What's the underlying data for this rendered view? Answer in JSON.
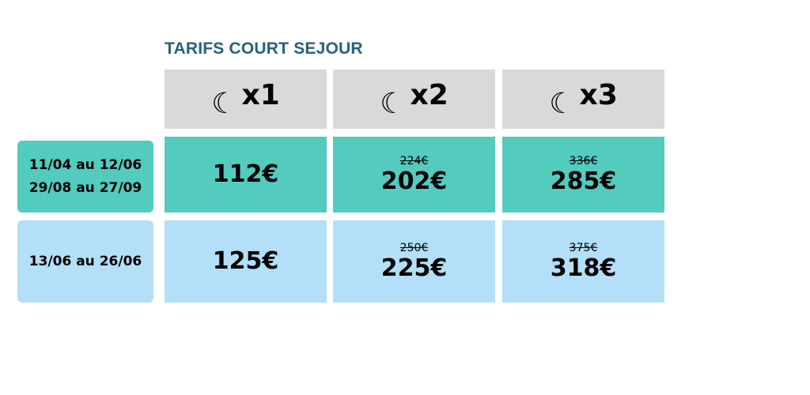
{
  "title": "TARIFS COURT SEJOUR",
  "colors": {
    "title": "#27617a",
    "header": "#d9d9d9",
    "period1": "#53cbbf",
    "period2": "#b3dff9"
  },
  "headers": [
    {
      "icon": "moon-icon",
      "label": "x1"
    },
    {
      "icon": "moon-icon",
      "label": "x2"
    },
    {
      "icon": "moon-icon",
      "label": "x3"
    }
  ],
  "rows": [
    {
      "periods": [
        "11/04 au 12/06",
        "29/08 au 27/09"
      ],
      "prices": [
        {
          "old": "",
          "price": "112€"
        },
        {
          "old": "224€",
          "price": "202€"
        },
        {
          "old": "336€",
          "price": "285€"
        }
      ]
    },
    {
      "periods": [
        "13/06 au 26/06"
      ],
      "prices": [
        {
          "old": "",
          "price": "125€"
        },
        {
          "old": "250€",
          "price": "225€"
        },
        {
          "old": "375€",
          "price": "318€"
        }
      ]
    }
  ]
}
